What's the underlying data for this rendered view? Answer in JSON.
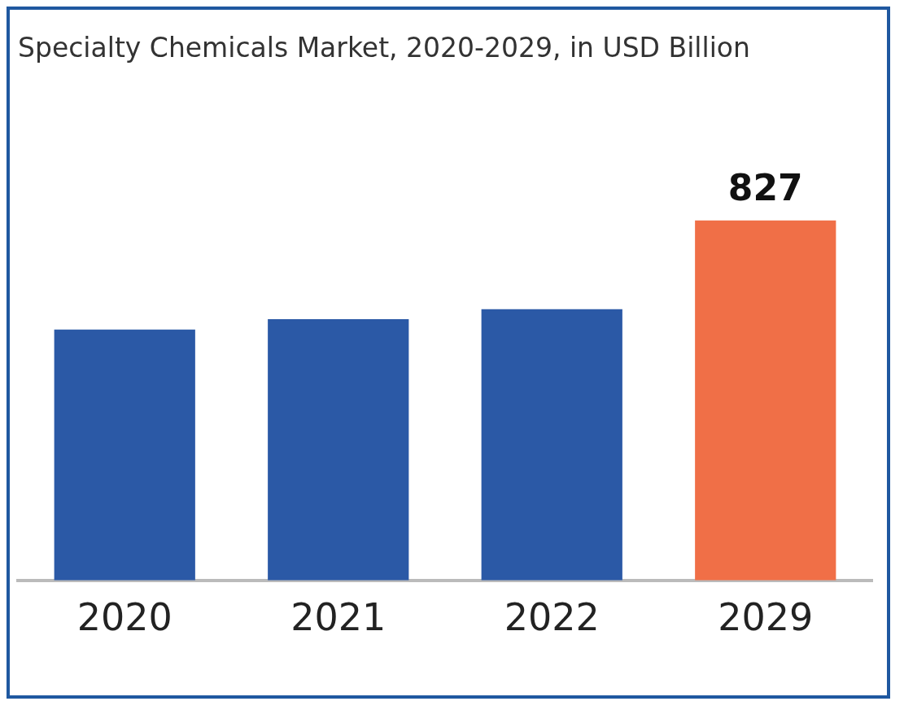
{
  "chart_data": {
    "type": "bar",
    "title": "Specialty Chemicals Market, 2020-2029, in USD Billion",
    "categories": [
      "2020",
      "2021",
      "2022",
      "2029"
    ],
    "values": [
      576,
      600,
      623,
      827
    ],
    "colors": [
      "#2b59a6",
      "#2b59a6",
      "#2b59a6",
      "#f06f47"
    ],
    "value_labels": [
      null,
      null,
      null,
      "827"
    ]
  }
}
